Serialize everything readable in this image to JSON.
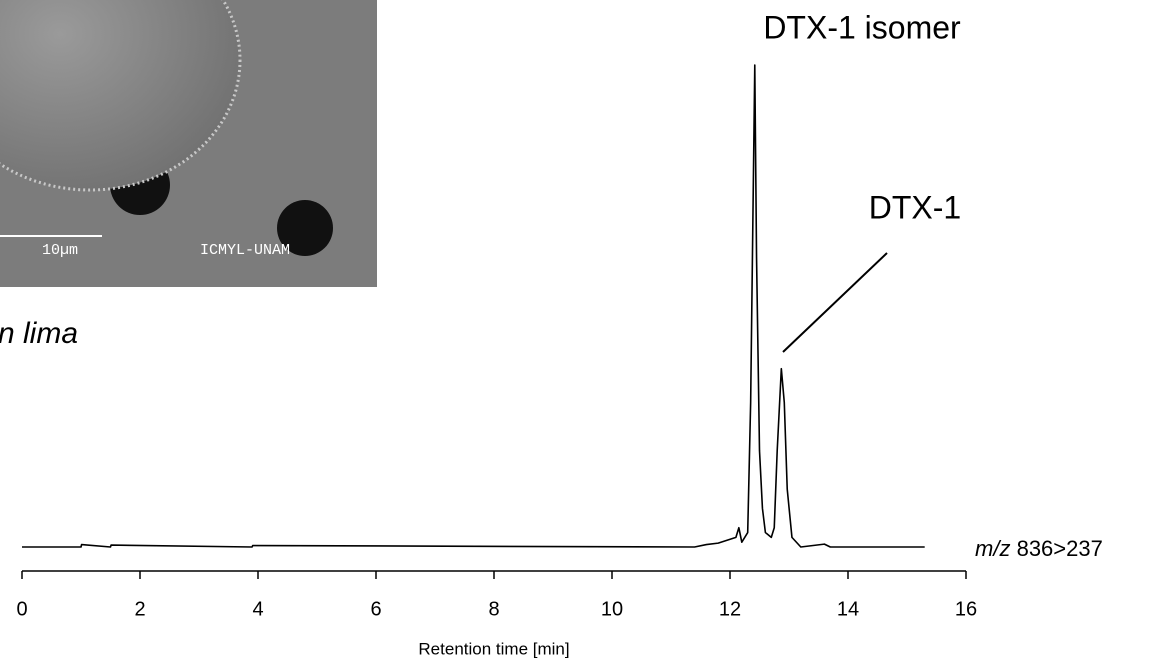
{
  "chart_data": {
    "type": "line",
    "x_label": "Retention time [min]",
    "annotations": [
      "DTX-1 isomer",
      "DTX-1"
    ],
    "trace_label_prefix": "m/z",
    "trace_label": "836>237",
    "caption": "n lima",
    "image_texts": [
      "10µm",
      "ICMYL-UNAM"
    ],
    "xlim": [
      0,
      16
    ],
    "xticks": [
      0,
      2,
      4,
      6,
      8,
      10,
      12,
      14,
      16
    ],
    "ylim": [
      0,
      100
    ],
    "color": "#000000",
    "x": [
      0,
      1,
      1.01,
      1.5,
      1.51,
      3.9,
      3.91,
      11.4,
      11.6,
      11.8,
      12.1,
      12.15,
      12.2,
      12.3,
      12.35,
      12.4,
      12.42,
      12.45,
      12.5,
      12.55,
      12.6,
      12.7,
      12.75,
      12.8,
      12.87,
      12.92,
      12.97,
      13.05,
      13.2,
      13.6,
      13.7,
      15.3
    ],
    "values": [
      0,
      0,
      0.5,
      0,
      0.4,
      0,
      0.3,
      0,
      0.5,
      0.8,
      2,
      4,
      1,
      3,
      30,
      80,
      100,
      60,
      20,
      8,
      3,
      2,
      4,
      20,
      37,
      30,
      12,
      2,
      0,
      0.6,
      0,
      0
    ]
  }
}
